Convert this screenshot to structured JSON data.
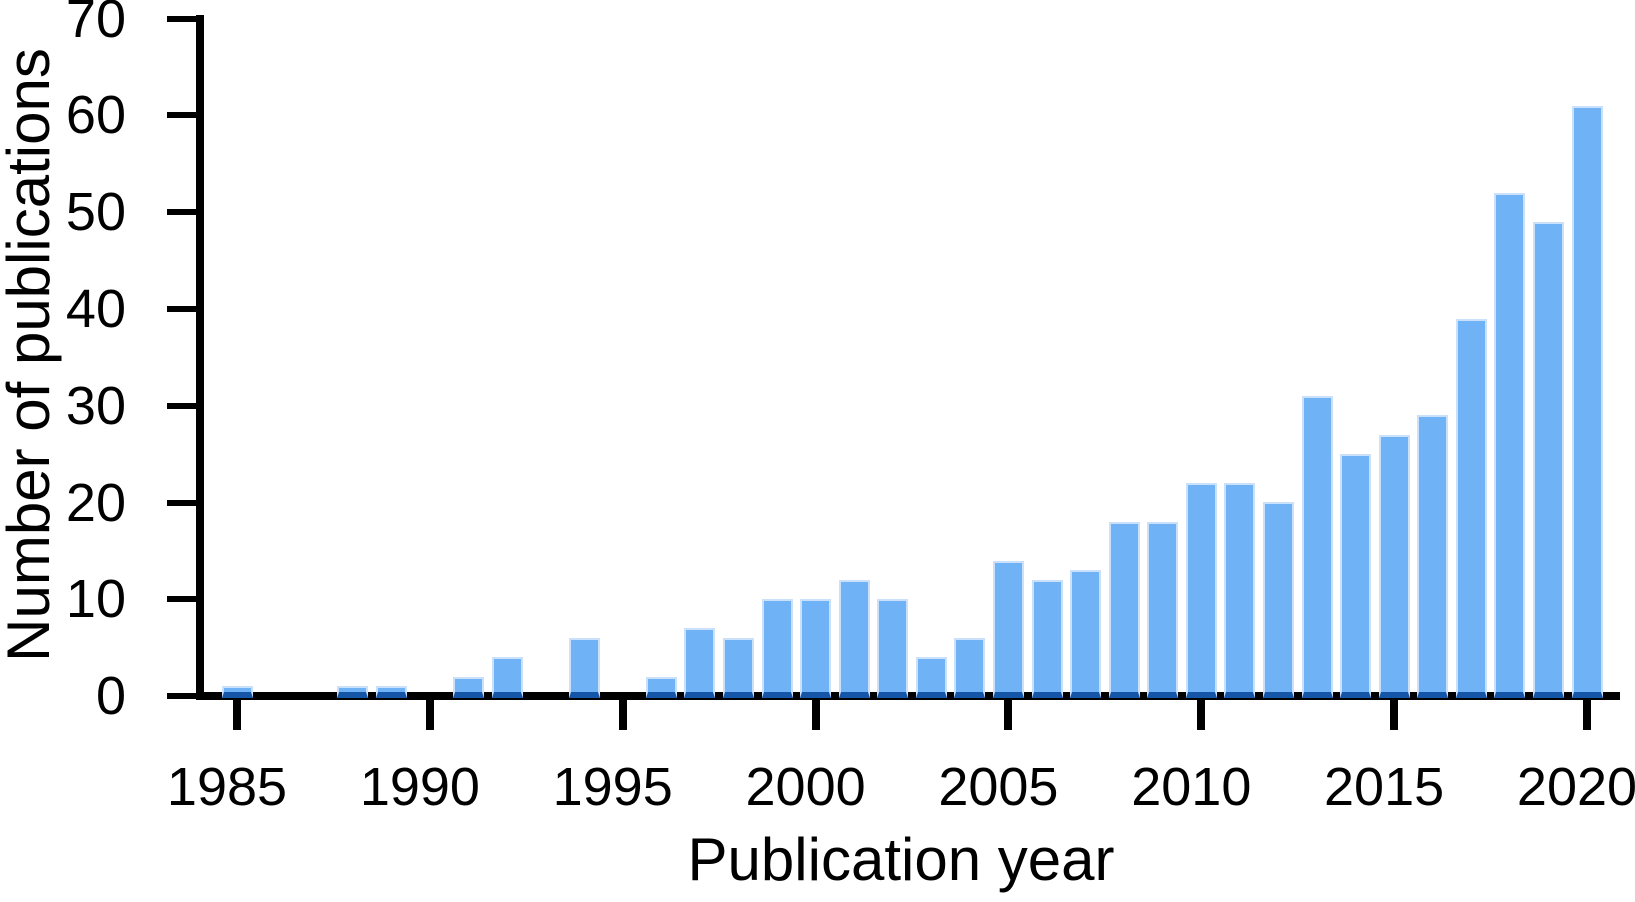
{
  "chart_data": {
    "type": "bar",
    "title": "",
    "xlabel": "Publication year",
    "ylabel": "Number of publications",
    "categories": [
      1985,
      1986,
      1987,
      1988,
      1989,
      1990,
      1991,
      1992,
      1993,
      1994,
      1995,
      1996,
      1997,
      1998,
      1999,
      2000,
      2001,
      2002,
      2003,
      2004,
      2005,
      2006,
      2007,
      2008,
      2009,
      2010,
      2011,
      2012,
      2013,
      2014,
      2015,
      2016,
      2017,
      2018,
      2019,
      2020
    ],
    "values": [
      1,
      0,
      0,
      1,
      1,
      0,
      2,
      4,
      0,
      6,
      0,
      2,
      7,
      6,
      10,
      10,
      12,
      10,
      4,
      6,
      14,
      12,
      13,
      18,
      18,
      22,
      22,
      20,
      31,
      25,
      27,
      29,
      39,
      52,
      49,
      61
    ],
    "xticks": [
      1985,
      1990,
      1995,
      2000,
      2005,
      2010,
      2015,
      2020
    ],
    "yticks": [
      0,
      10,
      20,
      30,
      40,
      50,
      60,
      70
    ],
    "ylim": [
      0,
      70
    ],
    "grid": false,
    "legend": "none",
    "colors": {
      "bar_fill": "#6FB3F6",
      "bar_edge_light": "#CBE0FA",
      "bar_edge_dark": "#1656A8",
      "axis": "#000000",
      "text": "#000000"
    }
  }
}
